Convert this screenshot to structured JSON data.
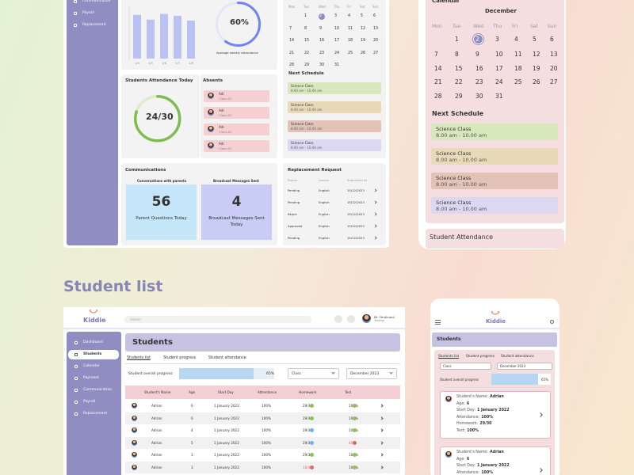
{
  "dashboard": {
    "sidebar": [
      "Communication",
      "Payroll",
      "Replacement"
    ],
    "weekly_chart": {
      "type": "bar",
      "categories": [
        "1/4",
        "1/5",
        "1/6",
        "1/7",
        "1/8"
      ],
      "values": [
        92,
        82,
        94,
        90,
        80
      ],
      "ylim": [
        0,
        100
      ],
      "color": "#b9c2f2"
    },
    "weekly_average": {
      "value": 60,
      "label": "60%",
      "caption": "Average weekly attendance"
    },
    "next_schedule_title": "Next Schedule",
    "attendance_today": {
      "title": "Students Attendance Today",
      "present": 24,
      "total": 30,
      "label": "24/30"
    },
    "absents": {
      "title": "Absents",
      "items": [
        {
          "name": "Adi",
          "class": "Class A1"
        },
        {
          "name": "Adi",
          "class": "Class A1"
        },
        {
          "name": "Adi",
          "class": "Class A1"
        },
        {
          "name": "Adi",
          "class": "Class A1"
        }
      ]
    },
    "communications": {
      "title": "Communications",
      "cards": [
        {
          "heading": "Conversations with parents",
          "value": 56,
          "caption": "Parent Questions Today",
          "color": "#c4e6f8"
        },
        {
          "heading": "Broadcast Messages Sent",
          "value": 4,
          "caption": "Broadcast Messages Sent Today",
          "color": "#c9ccf4"
        }
      ]
    },
    "replacement": {
      "title": "Replacement Request",
      "headers": [
        "Status",
        "Lesson",
        "Submitted At"
      ],
      "rows": [
        [
          "Pending",
          "English",
          "15/12/2023"
        ],
        [
          "Pending",
          "English",
          "15/12/2023"
        ],
        [
          "Reject",
          "English",
          "15/12/2023"
        ],
        [
          "Approved",
          "English",
          "15/12/2023"
        ],
        [
          "Pending",
          "English",
          "15/12/2023"
        ]
      ]
    }
  },
  "calendar": {
    "title": "Calendar",
    "month": "December",
    "weekdays": [
      "Mon",
      "Tue",
      "Wed",
      "Thu",
      "Fri",
      "Sat",
      "Sun"
    ],
    "weeks": [
      [
        null,
        1,
        2,
        3,
        4,
        5,
        6
      ],
      [
        7,
        8,
        9,
        10,
        11,
        12,
        13
      ],
      [
        14,
        15,
        16,
        17,
        18,
        19,
        20
      ],
      [
        21,
        22,
        23,
        24,
        25,
        26,
        27
      ],
      [
        28,
        29,
        30,
        31,
        null,
        null,
        null
      ]
    ],
    "today": 2
  },
  "schedule": [
    {
      "title": "Science Class",
      "time": "8.00 am - 10.00 am",
      "color": "#d8e8bd"
    },
    {
      "title": "Science Class",
      "time": "8.00 am - 10.00 am",
      "color": "#e8dab9"
    },
    {
      "title": "Science Class",
      "time": "8.00 am - 10.00 am",
      "color": "#e3c3b8"
    },
    {
      "title": "Science Class",
      "time": "8.00 am - 10.00 am",
      "color": "#dcd8f2"
    }
  ],
  "mobile_top": {
    "next_schedule": "Next Schedule",
    "attendance": "Student Attendance"
  },
  "student_list": {
    "heading": "Student list",
    "logo": "Kiddie",
    "search": "Search",
    "user": "Mr. Ferdinand",
    "role": "Teacher",
    "nav": [
      "Dashboard",
      "Students",
      "Calendar",
      "Payment",
      "Communication",
      "Payroll",
      "Replacement"
    ],
    "active_nav": 1,
    "title": "Students",
    "tabs": [
      "Students list",
      "Student progress",
      "Student attendance"
    ],
    "progress_label": "Student overall progress:",
    "progress": 65,
    "progress_text": "65%",
    "filters": [
      "Class",
      "December 2023"
    ],
    "columns": [
      "Student's Name",
      "Age",
      "Start Day",
      "Attendance",
      "Homework",
      "Test"
    ],
    "students": [
      {
        "name": "Adrian",
        "age": 6,
        "start": "1 January 2022",
        "attendance": "100%",
        "homework": "29/30",
        "test": "100%",
        "homework_color": "#8bc34a",
        "test_color": "#8bc34a"
      },
      {
        "name": "Adrian",
        "age": 6,
        "start": "1 January 2022",
        "attendance": "100%",
        "homework": "29/30",
        "test": "100%",
        "homework_color": "#8bc34a",
        "test_color": "#8bc34a"
      },
      {
        "name": "Adrian",
        "age": 4,
        "start": "1 January 2022",
        "attendance": "100%",
        "homework": "29/30",
        "test": "100%",
        "homework_color": "#64b5f6",
        "test_color": "#8bc34a"
      },
      {
        "name": "Adrian",
        "age": 5,
        "start": "1 January 2022",
        "attendance": "100%",
        "homework": "29/30",
        "test": "40%",
        "homework_color": "#64b5f6",
        "test_color": "#e06666"
      },
      {
        "name": "Adrian",
        "age": 3,
        "start": "1 January 2022",
        "attendance": "100%",
        "homework": "29/30",
        "test": "100%",
        "homework_color": "#8bc34a",
        "test_color": "#8bc34a"
      },
      {
        "name": "Adrian",
        "age": 3,
        "start": "1 January 2022",
        "attendance": "100%",
        "homework": "10/30",
        "test": "100%",
        "homework_color": "#e06666",
        "test_color": "#8bc34a"
      }
    ],
    "mobile_progress_label": "Student overall progress",
    "card_labels": [
      "Student's Name:",
      "Age:",
      "Start Day:",
      "Attendance:",
      "Homework:",
      "Test:"
    ]
  }
}
